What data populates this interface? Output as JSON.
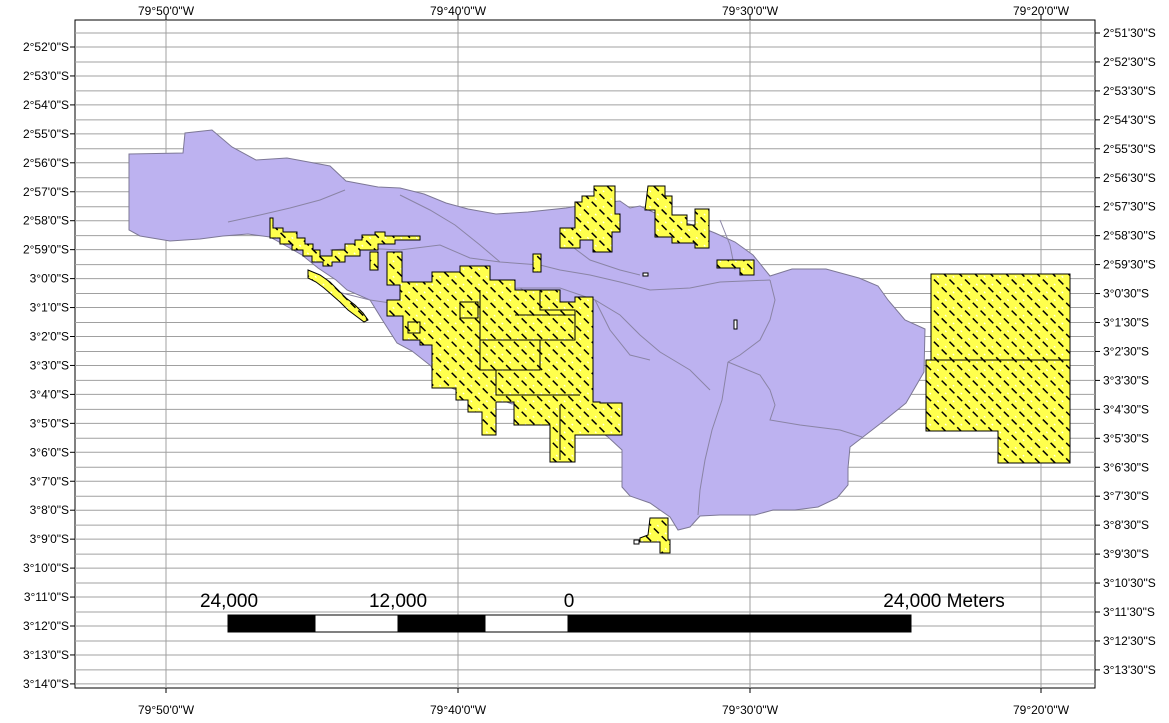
{
  "map": {
    "top_labels": [
      "79°50'0\"W",
      "79°40'0\"W",
      "79°30'0\"W",
      "79°20'0\"W"
    ],
    "bottom_labels": [
      "79°50'0\"W",
      "79°40'0\"W",
      "79°30'0\"W",
      "79°20'0\"W"
    ],
    "left_labels": [
      "2°52'0\"S",
      "2°53'0\"S",
      "2°54'0\"S",
      "2°55'0\"S",
      "2°56'0\"S",
      "2°57'0\"S",
      "2°58'0\"S",
      "2°59'0\"S",
      "3°0'0\"S",
      "3°1'0\"S",
      "3°2'0\"S",
      "3°3'0\"S",
      "3°4'0\"S",
      "3°5'0\"S",
      "3°6'0\"S",
      "3°7'0\"S",
      "3°8'0\"S",
      "3°9'0\"S",
      "3°10'0\"S",
      "3°11'0\"S",
      "3°12'0\"S",
      "3°13'0\"S",
      "3°14'0\"S"
    ],
    "right_labels": [
      "2°51'30\"S",
      "2°52'30\"S",
      "2°53'30\"S",
      "2°54'30\"S",
      "2°55'30\"S",
      "2°56'30\"S",
      "2°57'30\"S",
      "2°58'30\"S",
      "2°59'30\"S",
      "3°0'30\"S",
      "3°1'30\"S",
      "3°2'30\"S",
      "3°3'30\"S",
      "3°4'30\"S",
      "3°5'30\"S",
      "3°6'30\"S",
      "3°7'30\"S",
      "3°8'30\"S",
      "3°9'30\"S",
      "3°10'30\"S",
      "3°11'30\"S",
      "3°12'30\"S",
      "3°13'30\"S"
    ],
    "scale_bar": {
      "labels": [
        "24,000",
        "12,000",
        "0",
        "24,000 Meters"
      ]
    },
    "colors": {
      "basin_fill": "#bdb2f0",
      "basin_stroke": "#7d7896",
      "concession_fill": "#ffff4d",
      "hatch": "#000000",
      "grid": "#a0a0a0"
    }
  }
}
